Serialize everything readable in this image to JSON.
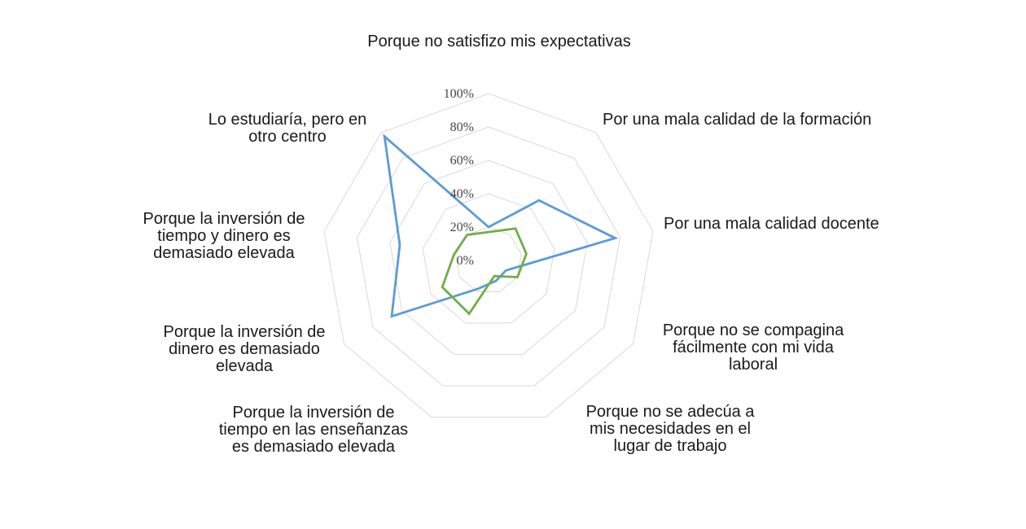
{
  "chart_data": {
    "type": "radar",
    "categories": [
      "Porque no satisfizo mis expectativas",
      "Por una mala calidad de la formación",
      "Por una mala calidad docente",
      "Porque no se compagina fácilmente con mi vida laboral",
      "Porque no se adecúa a mis necesidades en el lugar de trabajo",
      "Porque la inversión de tiempo en las enseñanzas es demasiado elevada",
      "Porque la inversión de dinero es demasiado elevada",
      "Porque la inversión de tiempo y dinero es demasiado elevada",
      "Lo estudiaría, pero en otro centro"
    ],
    "category_lines": [
      [
        "Porque no satisfizo mis expectativas"
      ],
      [
        "Por una mala calidad de la formación"
      ],
      [
        "Por una mala calidad docente"
      ],
      [
        "Porque no se compagina",
        "fácilmente con mi vida",
        "laboral"
      ],
      [
        "Porque no se adecúa a",
        "mis necesidades en el",
        "lugar de trabajo"
      ],
      [
        "Porque la inversión de",
        "tiempo en las enseñanzas",
        "es demasiado elevada"
      ],
      [
        "Porque la inversión de",
        "dinero es demasiado",
        "elevada"
      ],
      [
        "Porque la inversión de",
        "tiempo y dinero es",
        "demasiado elevada"
      ],
      [
        "Lo estudiaría, pero en",
        "otro centro"
      ]
    ],
    "series": [
      {
        "values": [
          20,
          47,
          77,
          12,
          13,
          18,
          67,
          54,
          97
        ],
        "color": "#5b9bd5"
      },
      {
        "values": [
          17,
          25,
          23,
          20,
          10,
          34,
          32,
          21,
          20
        ],
        "color": "#70ad47"
      }
    ],
    "radial_ticks": [
      "0%",
      "20%",
      "40%",
      "60%",
      "80%",
      "100%"
    ],
    "rlim": [
      0,
      100
    ],
    "grid": true,
    "legend": false
  }
}
